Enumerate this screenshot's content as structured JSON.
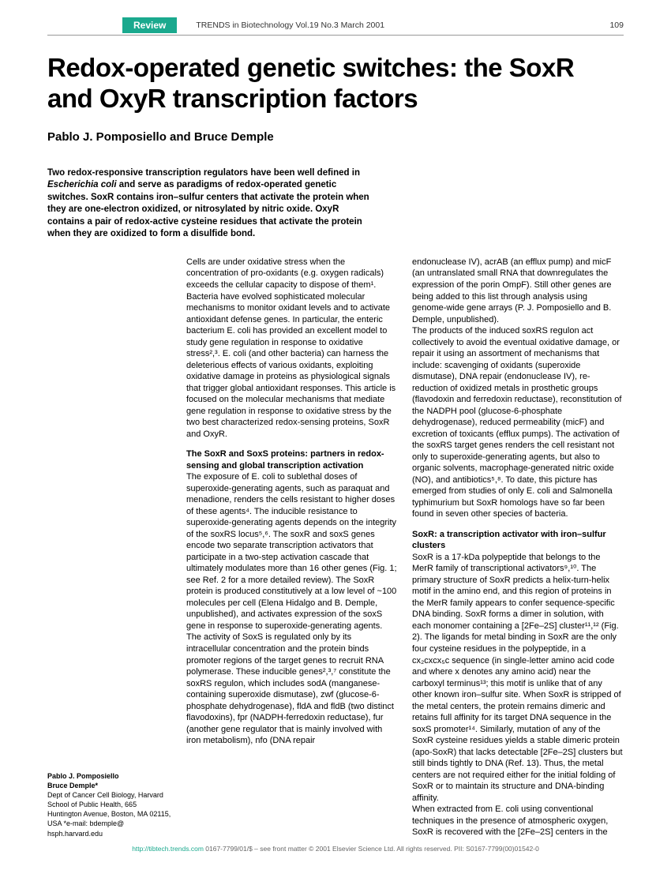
{
  "header": {
    "badge": "Review",
    "journal": "TRENDS in Biotechnology  Vol.19 No.3  March 2001",
    "pageNum": "109"
  },
  "title": "Redox-operated genetic switches: the SoxR and OxyR transcription factors",
  "authors": "Pablo J. Pomposiello and Bruce Demple",
  "abstract": {
    "p1": "Two redox-responsive transcription regulators have been well defined in ",
    "p1i": "Escherichia coli",
    "p1b": " and serve as paradigms of redox-operated genetic switches. SoxR contains iron–sulfur centers that activate the protein when they are one-electron oxidized, or nitrosylated by nitric oxide. OxyR contains a pair of redox-active cysteine residues that activate the protein when they are oxidized to form a disulfide bond."
  },
  "affil": {
    "name1": "Pablo J. Pomposiello",
    "name2": "Bruce Demple*",
    "text": "Dept of Cancer Cell Biology, Harvard School of Public Health, 665 Huntington Avenue, Boston, MA  02115, USA *e-mail: bdemple@ hsph.harvard.edu"
  },
  "col1": {
    "intro": "Cells are under oxidative stress when the concentration of pro-oxidants (e.g. oxygen radicals) exceeds the cellular capacity to dispose of them¹. Bacteria have evolved sophisticated molecular mechanisms to monitor oxidant levels and to activate antioxidant defense genes. In particular, the enteric bacterium E. coli has provided an excellent model to study gene regulation in response to oxidative stress²,³. E. coli (and other bacteria) can harness the deleterious effects of various oxidants, exploiting oxidative damage in proteins as physiological signals that trigger global antioxidant responses. This article is focused on the molecular mechanisms that mediate gene regulation in response to oxidative stress by the two best characterized redox-sensing proteins, SoxR and OxyR.",
    "head1": "The SoxR and SoxS proteins: partners in redox-sensing and global transcription activation",
    "para1": "The exposure of E. coli to sublethal doses of superoxide-generating agents, such as paraquat and menadione, renders the cells resistant to higher doses of these agents⁴. The inducible resistance to superoxide-generating agents depends on the integrity of the soxRS locus⁵,⁶. The soxR and soxS genes encode two separate transcription activators that participate in a two-step activation cascade that ultimately modulates more than 16 other genes (Fig. 1; see Ref. 2 for a more detailed review). The SoxR protein is produced constitutively at a low level of ~100 molecules per cell (Elena Hidalgo and B. Demple, unpublished), and activates expression of the soxS gene in response to superoxide-generating agents. The activity of SoxS is regulated only by its intracellular concentration and the protein binds promoter regions of the target genes to recruit RNA polymerase. These inducible genes²,³,⁷ constitute the soxRS regulon, which includes sodA (manganese-containing superoxide dismutase), zwf (glucose-6-phosphate dehydrogenase), fldA and fldB (two distinct flavodoxins), fpr (NADPH-ferredoxin reductase), fur (another gene regulator that is mainly involved with iron metabolism), nfo (DNA repair"
  },
  "col2": {
    "cont": "endonuclease IV), acrAB (an efflux pump) and micF (an untranslated small RNA that downregulates the expression of the porin OmpF). Still other genes are being added to this list through analysis using genome-wide gene arrays (P. J. Pomposiello and B. Demple, unpublished).",
    "para2": "    The products of the induced soxRS regulon act collectively to avoid the eventual oxidative damage, or repair it using an assortment of mechanisms that include: scavenging of oxidants (superoxide dismutase), DNA repair (endonuclease IV), re-reduction of oxidized metals in prosthetic groups (flavodoxin and ferredoxin reductase), reconstitution of the NADPH pool (glucose-6-phosphate dehydrogenase), reduced permeability (micF) and excretion of toxicants (efflux pumps). The activation of the soxRS target genes renders the cell resistant not only to superoxide-generating agents, but also to organic solvents, macrophage-generated nitric oxide (NO), and antibiotics⁵,⁸. To date, this picture has emerged from studies of only E. coli and Salmonella typhimurium but SoxR homologs have so far been found in seven other species of bacteria.",
    "head2": "SoxR: a transcription activator with iron–sulfur clusters",
    "para3": "SoxR is a 17-kDa polypeptide that belongs to the MerR family of transcriptional activators⁹,¹⁰. The primary structure of SoxR predicts a helix-turn-helix motif in the amino end, and this region of proteins in the MerR family appears to confer sequence-specific DNA binding. SoxR forms a dimer in solution, with each monomer containing a [2Fe–2S] cluster¹¹,¹² (Fig. 2). The ligands for metal binding in SoxR are the only four cysteine residues in the polypeptide, in a cx₂cxcx₅c sequence (in single-letter amino acid code and where x denotes any amino acid) near the carboxyl terminus¹³; this motif is unlike that of any other known iron–sulfur site. When SoxR is stripped of the metal centers, the protein remains dimeric and retains full affinity for its target DNA sequence in the soxS promoter¹⁴. Similarly, mutation of any of the SoxR cysteine residues yields a stable dimeric protein (apo-SoxR) that lacks detectable [2Fe–2S] clusters but still binds tightly to DNA (Ref. 13). Thus, the metal centers are not required either for the initial folding of SoxR or to maintain its structure and DNA-binding affinity.",
    "para4": "    When extracted from E. coli using conventional techniques in the presence of atmospheric oxygen, SoxR is recovered with the [2Fe–2S] centers in the"
  },
  "footer": {
    "link": "http://tibtech.trends.com",
    "rest": " 0167-7799/01/$ – see front matter © 2001 Elsevier Science Ltd. All rights reserved.  PII: S0167-7799(00)01542-0"
  }
}
